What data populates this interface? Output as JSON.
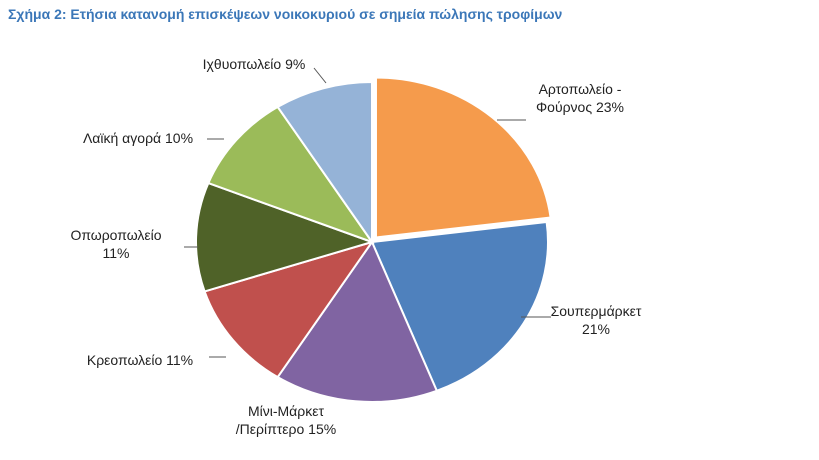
{
  "title": "Σχήμα 2: Ετήσια κατανομή επισκέψεων νοικοκυριού σε σημεία πώλησης τροφίμων",
  "chart_data": {
    "type": "pie",
    "title": "Σχήμα 2: Ετήσια κατανομή επισκέψεων νοικοκυριού σε σημεία πώλησης τροφίμων",
    "slices": [
      {
        "label": [
          "Αρτοπωλείο -",
          "Φούρνος 23%"
        ],
        "value": 23,
        "color": "#f59b4c"
      },
      {
        "label": [
          "Σουπερμάρκετ",
          "21%"
        ],
        "value": 21,
        "color": "#4f81bd"
      },
      {
        "label": [
          "Μίνι-Μάρκετ",
          "/Περίπτερο 15%"
        ],
        "value": 15,
        "color": "#8064a2"
      },
      {
        "label": [
          "Κρεοπωλείο 11%"
        ],
        "value": 11,
        "color": "#c0504d"
      },
      {
        "label": [
          "Οπωροπωλείο",
          "11%"
        ],
        "value": 11,
        "color": "#4f6228"
      },
      {
        "label": [
          "Λαϊκή αγορά 10%"
        ],
        "value": 10,
        "color": "#9bbb59"
      },
      {
        "label": [
          "Ιχθυοπωλείο 9%"
        ],
        "value": 9,
        "color": "#95b3d7"
      }
    ],
    "legend": "none",
    "start": "top, clockwise"
  }
}
